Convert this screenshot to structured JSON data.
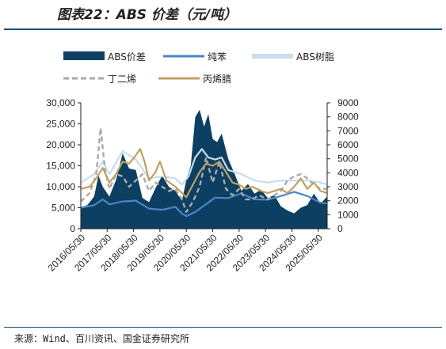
{
  "title": "图表22：ABS 价差（元/吨）",
  "source": "来源：Wind、百川资讯、国金证券研究所",
  "chart_data": {
    "type": "line",
    "title": "图表22：ABS 价差（元/吨）",
    "xlabel": "",
    "ylabel_left": "",
    "ylabel_right": "",
    "legend_placement": "top",
    "grid": false,
    "x_tick_labels": [
      "2016/05/30",
      "2017/05/30",
      "2018/05/30",
      "2019/05/30",
      "2020/05/30",
      "2021/05/30",
      "2022/05/30",
      "2023/05/30",
      "2024/05/30",
      "2025/05/30"
    ],
    "y_left_ticks": [
      "0",
      "5,000",
      "10,000",
      "15,000",
      "20,000",
      "25,000",
      "30,000"
    ],
    "y_right_ticks": [
      "0",
      "1000",
      "2000",
      "3000",
      "4000",
      "5000",
      "6000",
      "7000",
      "8000",
      "9000"
    ],
    "ylim_left": [
      0,
      30000
    ],
    "ylim_right": [
      0,
      9000
    ],
    "x_range": [
      "2016-05-30",
      "2025-09-30"
    ],
    "colors": {
      "spread": "#0d3f63",
      "benzene": "#4a86c5",
      "abs": "#c8dcef",
      "butadiene": "#a9a9a9",
      "acrylonitrile": "#c0a060"
    },
    "series": [
      {
        "name": "ABS价差",
        "axis": "right",
        "style": "area",
        "color_key": "spread",
        "points": [
          [
            "2016-05-30",
            1500
          ],
          [
            "2016-08-30",
            1700
          ],
          [
            "2016-11-30",
            2300
          ],
          [
            "2017-01-30",
            3800
          ],
          [
            "2017-03-30",
            3000
          ],
          [
            "2017-06-30",
            2300
          ],
          [
            "2017-09-30",
            3500
          ],
          [
            "2017-12-30",
            5400
          ],
          [
            "2018-03-30",
            4300
          ],
          [
            "2018-06-30",
            4200
          ],
          [
            "2018-09-30",
            2200
          ],
          [
            "2018-12-30",
            1900
          ],
          [
            "2019-03-30",
            2900
          ],
          [
            "2019-06-30",
            3800
          ],
          [
            "2019-09-30",
            3000
          ],
          [
            "2019-12-30",
            2700
          ],
          [
            "2020-03-30",
            2000
          ],
          [
            "2020-05-30",
            3500
          ],
          [
            "2020-07-30",
            4500
          ],
          [
            "2020-09-30",
            8000
          ],
          [
            "2020-11-30",
            8500
          ],
          [
            "2021-01-30",
            7300
          ],
          [
            "2021-03-30",
            8200
          ],
          [
            "2021-05-30",
            6400
          ],
          [
            "2021-07-30",
            6200
          ],
          [
            "2021-09-30",
            6800
          ],
          [
            "2021-12-30",
            5000
          ],
          [
            "2022-03-30",
            3900
          ],
          [
            "2022-06-30",
            2700
          ],
          [
            "2022-09-30",
            3200
          ],
          [
            "2022-12-30",
            2500
          ],
          [
            "2023-03-30",
            2800
          ],
          [
            "2023-06-30",
            2200
          ],
          [
            "2023-09-30",
            2400
          ],
          [
            "2023-12-30",
            1600
          ],
          [
            "2024-03-30",
            1300
          ],
          [
            "2024-06-30",
            1100
          ],
          [
            "2024-09-30",
            1500
          ],
          [
            "2024-12-30",
            1700
          ],
          [
            "2025-03-30",
            2500
          ],
          [
            "2025-06-30",
            1800
          ],
          [
            "2025-09-30",
            2300
          ]
        ]
      },
      {
        "name": "纯苯",
        "axis": "left",
        "style": "line",
        "color_key": "benzene",
        "points": [
          [
            "2016-05-30",
            5000
          ],
          [
            "2016-11-30",
            5600
          ],
          [
            "2017-03-30",
            7000
          ],
          [
            "2017-06-30",
            5800
          ],
          [
            "2017-12-30",
            6500
          ],
          [
            "2018-06-30",
            6700
          ],
          [
            "2018-12-30",
            4800
          ],
          [
            "2019-06-30",
            4500
          ],
          [
            "2019-12-30",
            5200
          ],
          [
            "2020-03-30",
            3600
          ],
          [
            "2020-05-30",
            3000
          ],
          [
            "2020-09-30",
            4000
          ],
          [
            "2021-01-30",
            5500
          ],
          [
            "2021-06-30",
            7400
          ],
          [
            "2021-12-30",
            7300
          ],
          [
            "2022-06-30",
            8400
          ],
          [
            "2022-12-30",
            7000
          ],
          [
            "2023-06-30",
            6900
          ],
          [
            "2023-12-30",
            7800
          ],
          [
            "2024-06-30",
            8800
          ],
          [
            "2024-12-30",
            7800
          ],
          [
            "2025-06-30",
            6200
          ],
          [
            "2025-09-30",
            6000
          ]
        ]
      },
      {
        "name": "ABS树脂",
        "axis": "left",
        "style": "line",
        "color_key": "abs",
        "points": [
          [
            "2016-05-30",
            11000
          ],
          [
            "2016-11-30",
            13000
          ],
          [
            "2017-03-30",
            16000
          ],
          [
            "2017-06-30",
            13000
          ],
          [
            "2017-12-30",
            18500
          ],
          [
            "2018-06-30",
            16500
          ],
          [
            "2018-12-30",
            12000
          ],
          [
            "2019-06-30",
            12500
          ],
          [
            "2019-12-30",
            12000
          ],
          [
            "2020-03-30",
            10500
          ],
          [
            "2020-06-30",
            12500
          ],
          [
            "2020-09-30",
            17000
          ],
          [
            "2020-12-30",
            19000
          ],
          [
            "2021-03-30",
            17000
          ],
          [
            "2021-06-30",
            16500
          ],
          [
            "2021-09-30",
            17000
          ],
          [
            "2021-12-30",
            14000
          ],
          [
            "2022-06-30",
            13000
          ],
          [
            "2022-12-30",
            11500
          ],
          [
            "2023-06-30",
            11000
          ],
          [
            "2023-12-30",
            11500
          ],
          [
            "2024-06-30",
            11500
          ],
          [
            "2024-12-30",
            11500
          ],
          [
            "2025-06-30",
            11000
          ],
          [
            "2025-09-30",
            10500
          ]
        ]
      },
      {
        "name": "丁二烯",
        "axis": "left",
        "style": "dashed",
        "color_key": "butadiene",
        "points": [
          [
            "2016-05-30",
            6500
          ],
          [
            "2016-09-30",
            8500
          ],
          [
            "2016-12-30",
            13000
          ],
          [
            "2017-02-28",
            24000
          ],
          [
            "2017-04-30",
            14000
          ],
          [
            "2017-06-30",
            9500
          ],
          [
            "2017-09-30",
            13000
          ],
          [
            "2017-12-30",
            12500
          ],
          [
            "2018-03-30",
            10000
          ],
          [
            "2018-06-30",
            11500
          ],
          [
            "2018-09-30",
            13000
          ],
          [
            "2018-12-30",
            9000
          ],
          [
            "2019-03-30",
            11000
          ],
          [
            "2019-06-30",
            10000
          ],
          [
            "2019-09-30",
            9000
          ],
          [
            "2019-12-30",
            9500
          ],
          [
            "2020-03-30",
            7000
          ],
          [
            "2020-05-30",
            4000
          ],
          [
            "2020-08-30",
            6500
          ],
          [
            "2020-11-30",
            10000
          ],
          [
            "2021-02-28",
            17000
          ],
          [
            "2021-05-30",
            11000
          ],
          [
            "2021-08-30",
            16000
          ],
          [
            "2021-11-30",
            9500
          ],
          [
            "2022-02-28",
            8000
          ],
          [
            "2022-05-30",
            9500
          ],
          [
            "2022-08-30",
            7000
          ],
          [
            "2022-11-30",
            7000
          ],
          [
            "2023-02-28",
            8000
          ],
          [
            "2023-06-30",
            7000
          ],
          [
            "2023-09-30",
            8000
          ],
          [
            "2023-12-30",
            9000
          ],
          [
            "2024-03-30",
            11500
          ],
          [
            "2024-06-30",
            12500
          ],
          [
            "2024-09-30",
            13000
          ],
          [
            "2024-12-30",
            12000
          ],
          [
            "2025-03-30",
            10500
          ],
          [
            "2025-06-30",
            9500
          ],
          [
            "2025-09-30",
            9500
          ]
        ]
      },
      {
        "name": "丙烯腈",
        "axis": "left",
        "style": "line",
        "color_key": "acrylonitrile",
        "points": [
          [
            "2016-05-30",
            9500
          ],
          [
            "2016-09-30",
            10000
          ],
          [
            "2016-12-30",
            12000
          ],
          [
            "2017-03-30",
            14500
          ],
          [
            "2017-06-30",
            11000
          ],
          [
            "2017-09-30",
            13000
          ],
          [
            "2017-12-30",
            16000
          ],
          [
            "2018-03-30",
            15500
          ],
          [
            "2018-06-30",
            17500
          ],
          [
            "2018-08-30",
            19000
          ],
          [
            "2018-10-30",
            16000
          ],
          [
            "2018-12-30",
            11500
          ],
          [
            "2019-03-30",
            13500
          ],
          [
            "2019-05-30",
            16000
          ],
          [
            "2019-08-30",
            11500
          ],
          [
            "2019-12-30",
            10000
          ],
          [
            "2020-03-30",
            8500
          ],
          [
            "2020-05-30",
            7500
          ],
          [
            "2020-08-30",
            10500
          ],
          [
            "2020-11-30",
            13500
          ],
          [
            "2021-02-28",
            15500
          ],
          [
            "2021-05-30",
            15000
          ],
          [
            "2021-08-30",
            16000
          ],
          [
            "2021-11-30",
            13500
          ],
          [
            "2022-02-28",
            11000
          ],
          [
            "2022-05-30",
            10500
          ],
          [
            "2022-08-30",
            9500
          ],
          [
            "2022-11-30",
            10000
          ],
          [
            "2023-03-30",
            9000
          ],
          [
            "2023-06-30",
            8500
          ],
          [
            "2023-09-30",
            9000
          ],
          [
            "2023-12-30",
            9500
          ],
          [
            "2024-03-30",
            8500
          ],
          [
            "2024-06-30",
            10000
          ],
          [
            "2024-09-30",
            12000
          ],
          [
            "2024-12-30",
            9500
          ],
          [
            "2025-03-30",
            11000
          ],
          [
            "2025-06-30",
            9000
          ],
          [
            "2025-09-30",
            8500
          ]
        ]
      }
    ]
  }
}
